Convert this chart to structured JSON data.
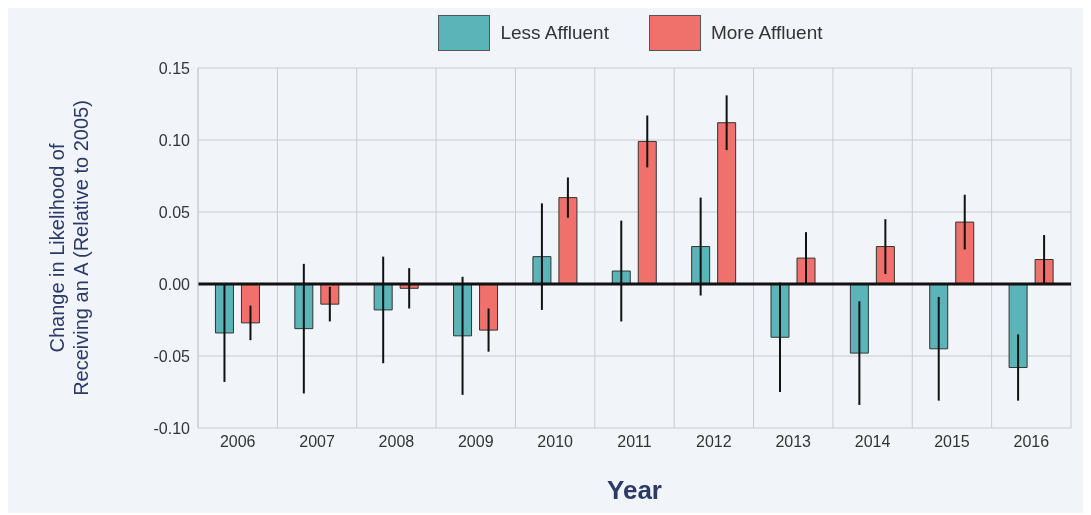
{
  "chart_data": {
    "type": "bar",
    "xlabel": "Year",
    "ylabel": "Change in Likelihood of Receiving an A (Relative to 2005)",
    "categories": [
      "2006",
      "2007",
      "2008",
      "2009",
      "2010",
      "2011",
      "2012",
      "2013",
      "2014",
      "2015",
      "2016"
    ],
    "series": [
      {
        "name": "Less Affluent",
        "color": "#5ab4b8",
        "values": [
          -0.034,
          -0.031,
          -0.018,
          -0.036,
          0.019,
          0.009,
          0.026,
          -0.037,
          -0.048,
          -0.045,
          -0.058
        ],
        "errors": [
          0.034,
          0.045,
          0.037,
          0.041,
          0.037,
          0.035,
          0.034,
          0.038,
          0.036,
          0.036,
          0.023
        ]
      },
      {
        "name": "More Affluent",
        "color": "#f0716b",
        "values": [
          -0.027,
          -0.014,
          -0.003,
          -0.032,
          0.06,
          0.099,
          0.112,
          0.018,
          0.026,
          0.043,
          0.017
        ],
        "errors": [
          0.012,
          0.012,
          0.014,
          0.015,
          0.014,
          0.018,
          0.019,
          0.018,
          0.019,
          0.019,
          0.017
        ]
      }
    ],
    "ylim": [
      -0.1,
      0.15
    ],
    "yticks": [
      {
        "value": -0.1,
        "label": "-0.10"
      },
      {
        "value": -0.05,
        "label": "-0.05"
      },
      {
        "value": 0,
        "label": "0.00"
      },
      {
        "value": 0.05,
        "label": "0.05"
      },
      {
        "value": 0.1,
        "label": "0.10"
      },
      {
        "value": 0.15,
        "label": "0.15"
      }
    ],
    "ref_lines": [
      {
        "axis": "y",
        "value": 0,
        "color": "#111111"
      }
    ],
    "grid": true,
    "legend": "top"
  }
}
